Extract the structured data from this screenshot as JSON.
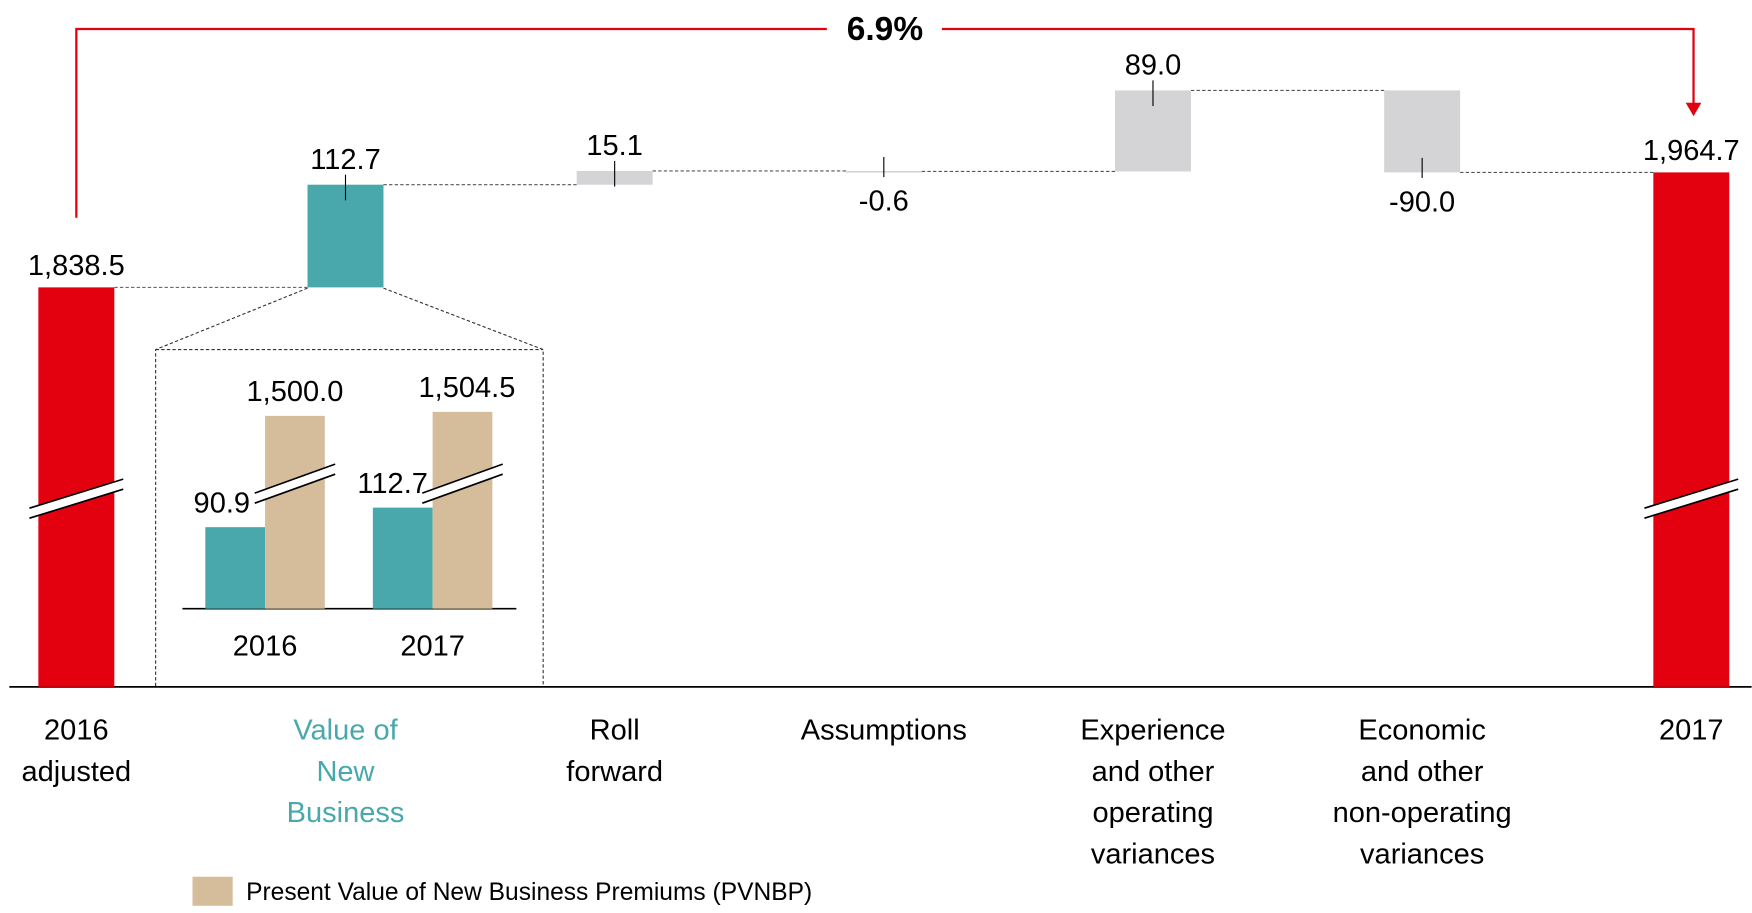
{
  "chart_data": [
    {
      "type": "waterfall",
      "annotation": "6.9%",
      "categories": [
        [
          "2016",
          "adjusted"
        ],
        [
          "Value of",
          "New",
          "Business"
        ],
        [
          "Roll",
          "forward"
        ],
        [
          "Assumptions"
        ],
        [
          "Experience",
          "and other",
          "operating",
          "variances"
        ],
        [
          "Economic",
          "and other",
          "non-operating",
          "variances"
        ],
        [
          "2017"
        ]
      ],
      "values": [
        1838.5,
        112.7,
        15.1,
        -0.6,
        89.0,
        -90.0,
        1964.7
      ],
      "value_labels": [
        "1,838.5",
        "112.7",
        "15.1",
        "-0.6",
        "89.0",
        "-90.0",
        "1,964.7"
      ],
      "measure": [
        "total",
        "relative",
        "relative",
        "relative",
        "relative",
        "relative",
        "total"
      ],
      "colors": [
        "#e3000f",
        "#48a8ab",
        "#d4d4d6",
        "#d4d4d6",
        "#d4d4d6",
        "#d4d4d6",
        "#e3000f"
      ],
      "label_colors": [
        "#000000",
        "#48a8ab",
        "#000000",
        "#000000",
        "#000000",
        "#000000",
        "#000000"
      ],
      "ylim": [
        1400,
        2100
      ]
    },
    {
      "type": "bar",
      "categories": [
        "2016",
        "2017"
      ],
      "series": [
        {
          "color": "#48a8ab",
          "values": [
            90.9,
            112.7
          ],
          "value_labels": [
            "90.9",
            "112.7"
          ]
        },
        {
          "name": "Present Value of New Business Premiums (PVNBP)",
          "color": "#d5bd9b",
          "values": [
            1500.0,
            1504.5
          ],
          "value_labels": [
            "1,500.0",
            "1,504.5"
          ]
        }
      ],
      "ylim": [
        0,
        1550
      ],
      "axis_break": [
        150,
        1435
      ]
    }
  ]
}
